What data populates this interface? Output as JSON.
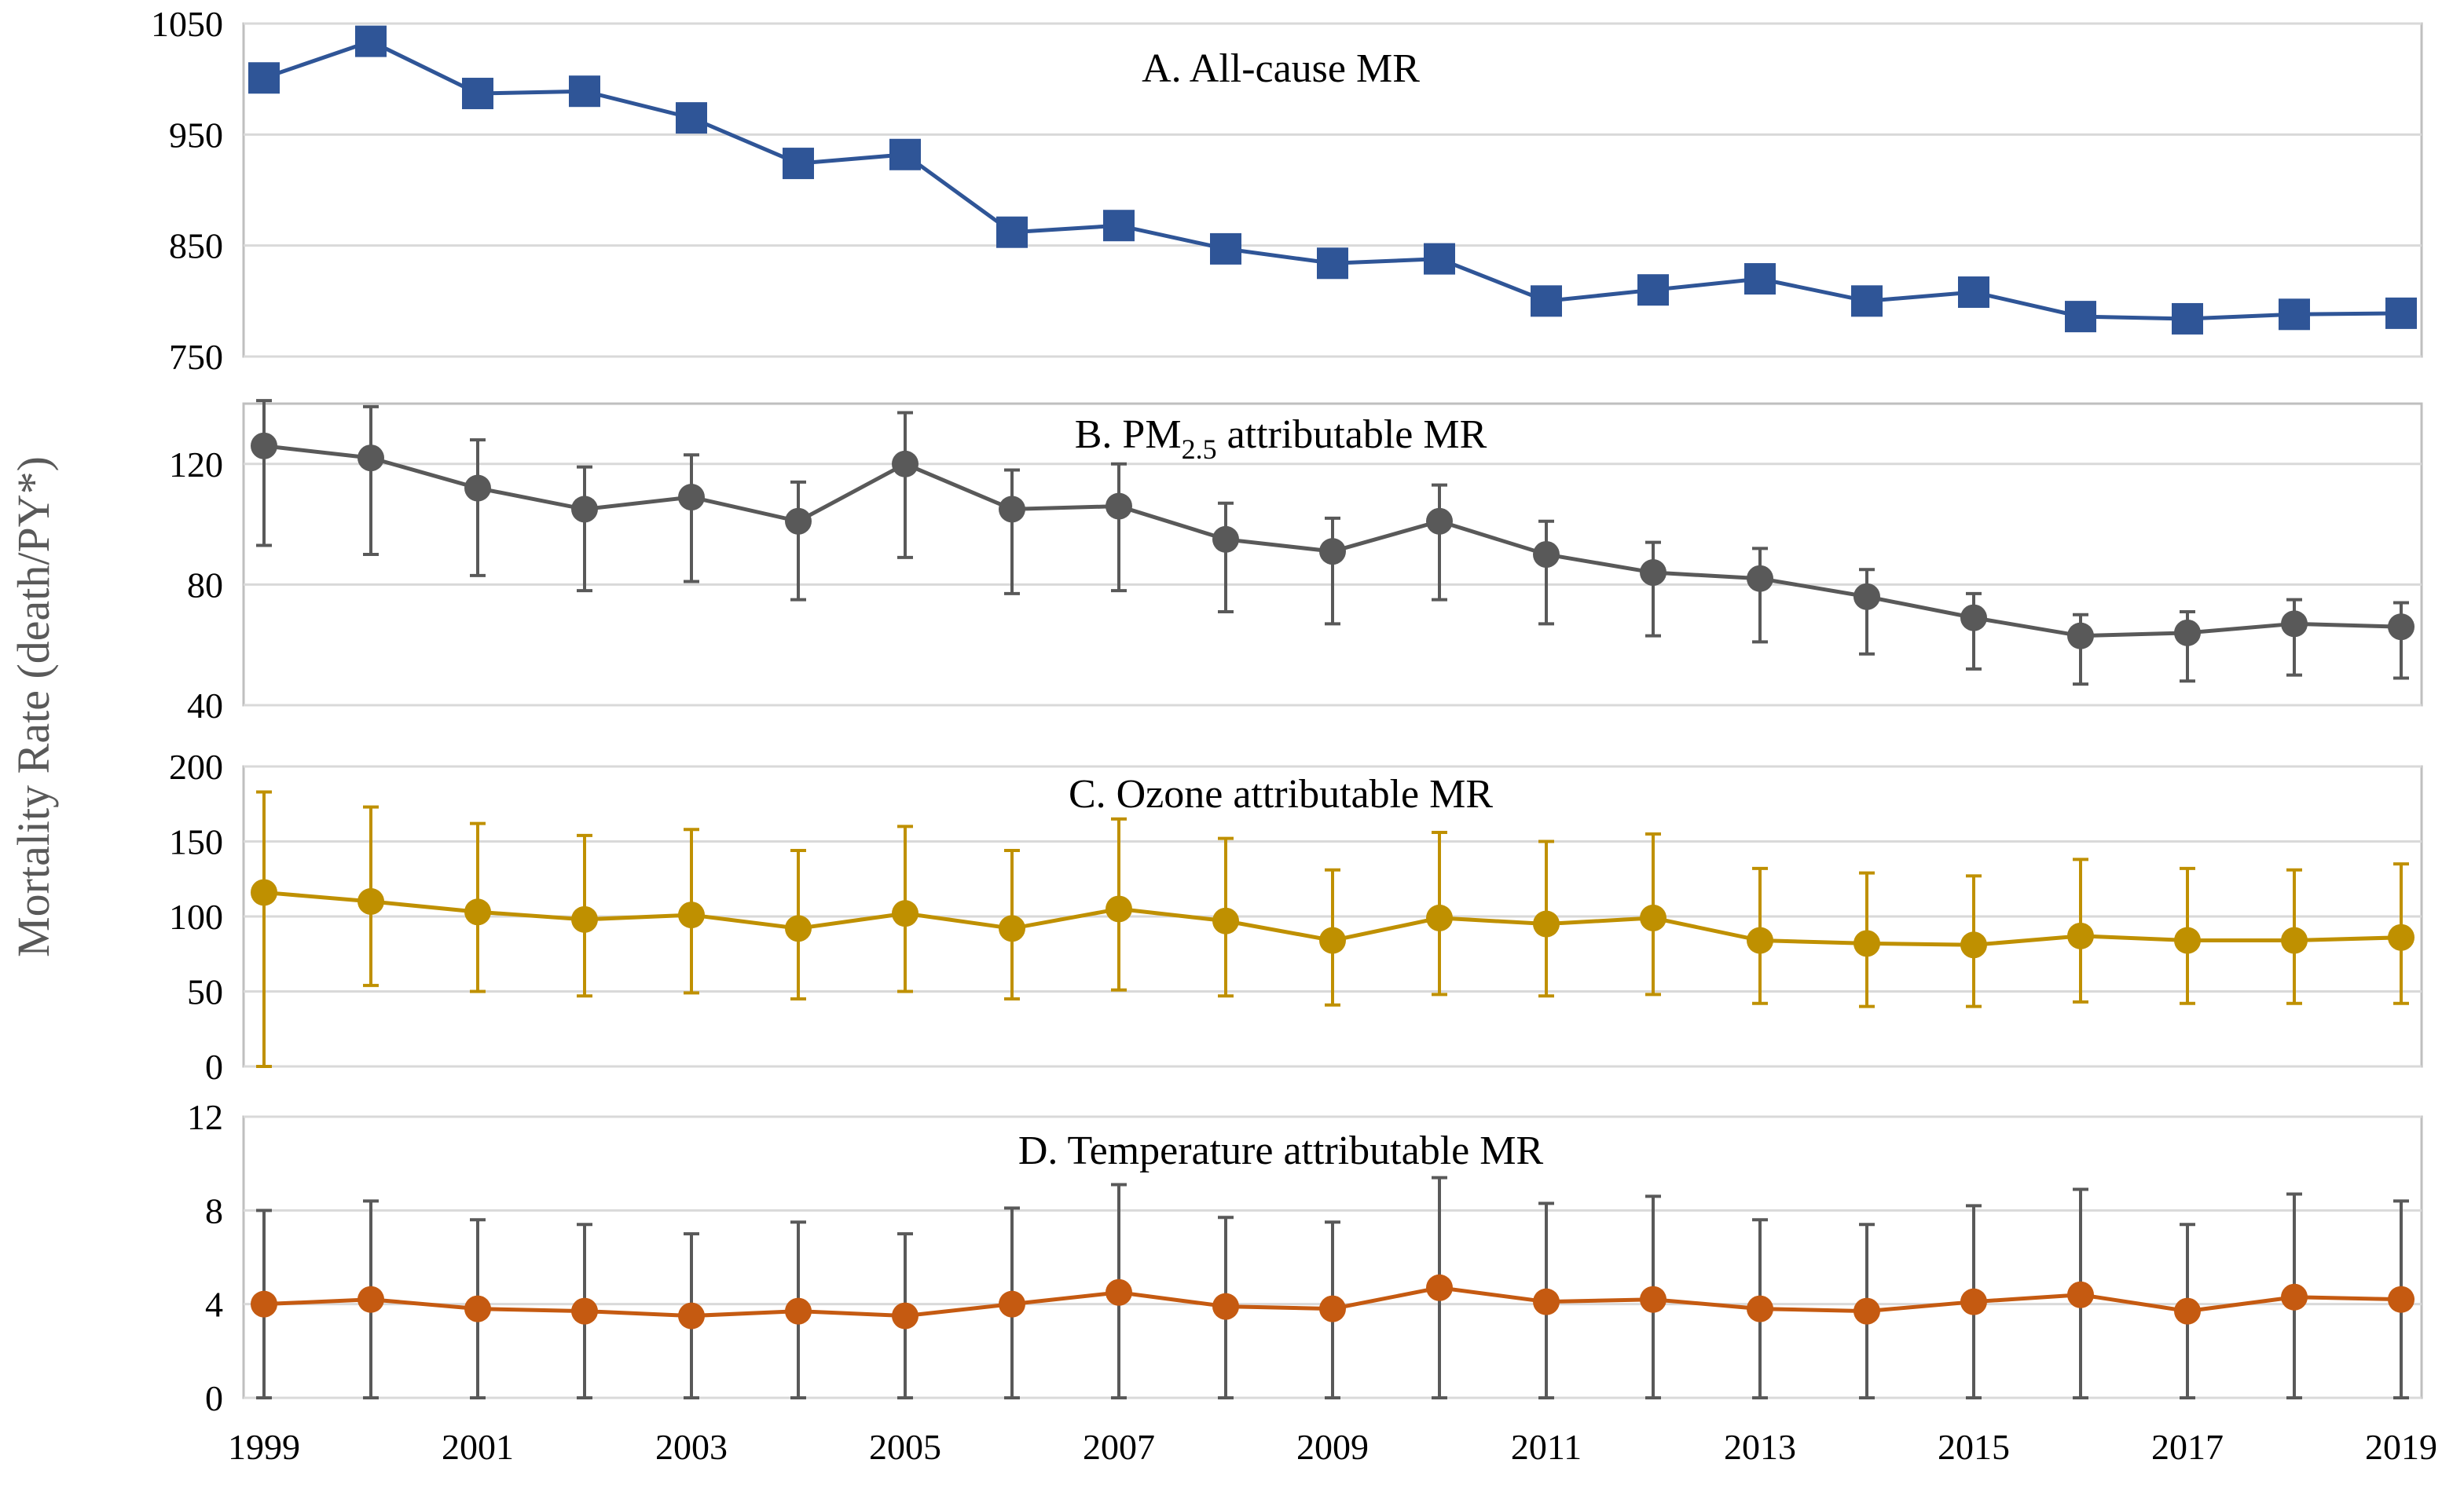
{
  "y_axis_label": "Mortality Rate (death/PY*)",
  "x_tick_labels": [
    "1999",
    "2001",
    "2003",
    "2005",
    "2007",
    "2009",
    "2011",
    "2013",
    "2015",
    "2017",
    "2019"
  ],
  "chart_data": [
    {
      "id": "A",
      "type": "line",
      "title": "A. All-cause MR",
      "marker": "square",
      "color": "#2F5597",
      "x": [
        1999,
        2000,
        2001,
        2002,
        2003,
        2004,
        2005,
        2006,
        2007,
        2008,
        2009,
        2010,
        2011,
        2012,
        2013,
        2014,
        2015,
        2016,
        2017,
        2018,
        2019
      ],
      "values": [
        1001,
        1034,
        987,
        989,
        965,
        924,
        932,
        862,
        868,
        847,
        834,
        838,
        800,
        810,
        820,
        800,
        808,
        786,
        784,
        788,
        789
      ],
      "ylim": [
        750,
        1050
      ],
      "yticks": [
        750,
        850,
        950,
        1050
      ],
      "grid": true
    },
    {
      "id": "B",
      "type": "line",
      "title_prefix": "B. PM",
      "title_subscript": "2.5",
      "title_suffix": " attributable MR",
      "marker": "circle",
      "color": "#595959",
      "x": [
        1999,
        2000,
        2001,
        2002,
        2003,
        2004,
        2005,
        2006,
        2007,
        2008,
        2009,
        2010,
        2011,
        2012,
        2013,
        2014,
        2015,
        2016,
        2017,
        2018,
        2019
      ],
      "values": [
        126,
        122,
        112,
        105,
        109,
        101,
        120,
        105,
        106,
        95,
        91,
        101,
        90,
        84,
        82,
        76,
        69,
        63,
        64,
        67,
        66
      ],
      "error_low": [
        93,
        90,
        83,
        78,
        81,
        75,
        89,
        77,
        78,
        71,
        67,
        75,
        67,
        63,
        61,
        57,
        52,
        47,
        48,
        50,
        49
      ],
      "error_high": [
        141,
        139,
        128,
        119,
        123,
        114,
        137,
        118,
        120,
        107,
        102,
        113,
        101,
        94,
        92,
        85,
        77,
        70,
        71,
        75,
        74
      ],
      "ylim": [
        40,
        140
      ],
      "yticks": [
        40,
        80,
        120
      ],
      "grid": true
    },
    {
      "id": "C",
      "type": "line",
      "title": "C. Ozone attributable MR",
      "marker": "circle",
      "color": "#BF9000",
      "x": [
        1999,
        2000,
        2001,
        2002,
        2003,
        2004,
        2005,
        2006,
        2007,
        2008,
        2009,
        2010,
        2011,
        2012,
        2013,
        2014,
        2015,
        2016,
        2017,
        2018,
        2019
      ],
      "values": [
        116,
        110,
        103,
        98,
        101,
        92,
        102,
        92,
        105,
        97,
        84,
        99,
        95,
        99,
        84,
        82,
        81,
        87,
        84,
        84,
        86
      ],
      "error_low": [
        0,
        54,
        50,
        47,
        49,
        45,
        50,
        45,
        51,
        47,
        41,
        48,
        47,
        48,
        42,
        40,
        40,
        43,
        42,
        42,
        42
      ],
      "error_high": [
        183,
        173,
        162,
        154,
        158,
        144,
        160,
        144,
        165,
        152,
        131,
        156,
        150,
        155,
        132,
        129,
        127,
        138,
        132,
        131,
        135
      ],
      "ylim": [
        0,
        200
      ],
      "yticks": [
        0,
        50,
        100,
        150,
        200
      ],
      "grid": true
    },
    {
      "id": "D",
      "type": "line",
      "title": "D. Temperature attributable MR",
      "marker": "circle",
      "color": "#C55A11",
      "error_color": "#595959",
      "x": [
        1999,
        2000,
        2001,
        2002,
        2003,
        2004,
        2005,
        2006,
        2007,
        2008,
        2009,
        2010,
        2011,
        2012,
        2013,
        2014,
        2015,
        2016,
        2017,
        2018,
        2019
      ],
      "values": [
        4.0,
        4.2,
        3.8,
        3.7,
        3.5,
        3.7,
        3.5,
        4.0,
        4.5,
        3.9,
        3.8,
        4.7,
        4.1,
        4.2,
        3.8,
        3.7,
        4.1,
        4.4,
        3.7,
        4.3,
        4.2
      ],
      "error_low": [
        0,
        0,
        0,
        0,
        0,
        0,
        0,
        0,
        0,
        0,
        0,
        0,
        0,
        0,
        0,
        0,
        0,
        0,
        0,
        0,
        0
      ],
      "error_high": [
        8.0,
        8.4,
        7.6,
        7.4,
        7.0,
        7.5,
        7.0,
        8.1,
        9.1,
        7.7,
        7.5,
        9.4,
        8.3,
        8.6,
        7.6,
        7.4,
        8.2,
        8.9,
        7.4,
        8.7,
        8.4
      ],
      "ylim": [
        0,
        12
      ],
      "yticks": [
        0,
        4,
        8,
        12
      ],
      "grid": true
    }
  ]
}
